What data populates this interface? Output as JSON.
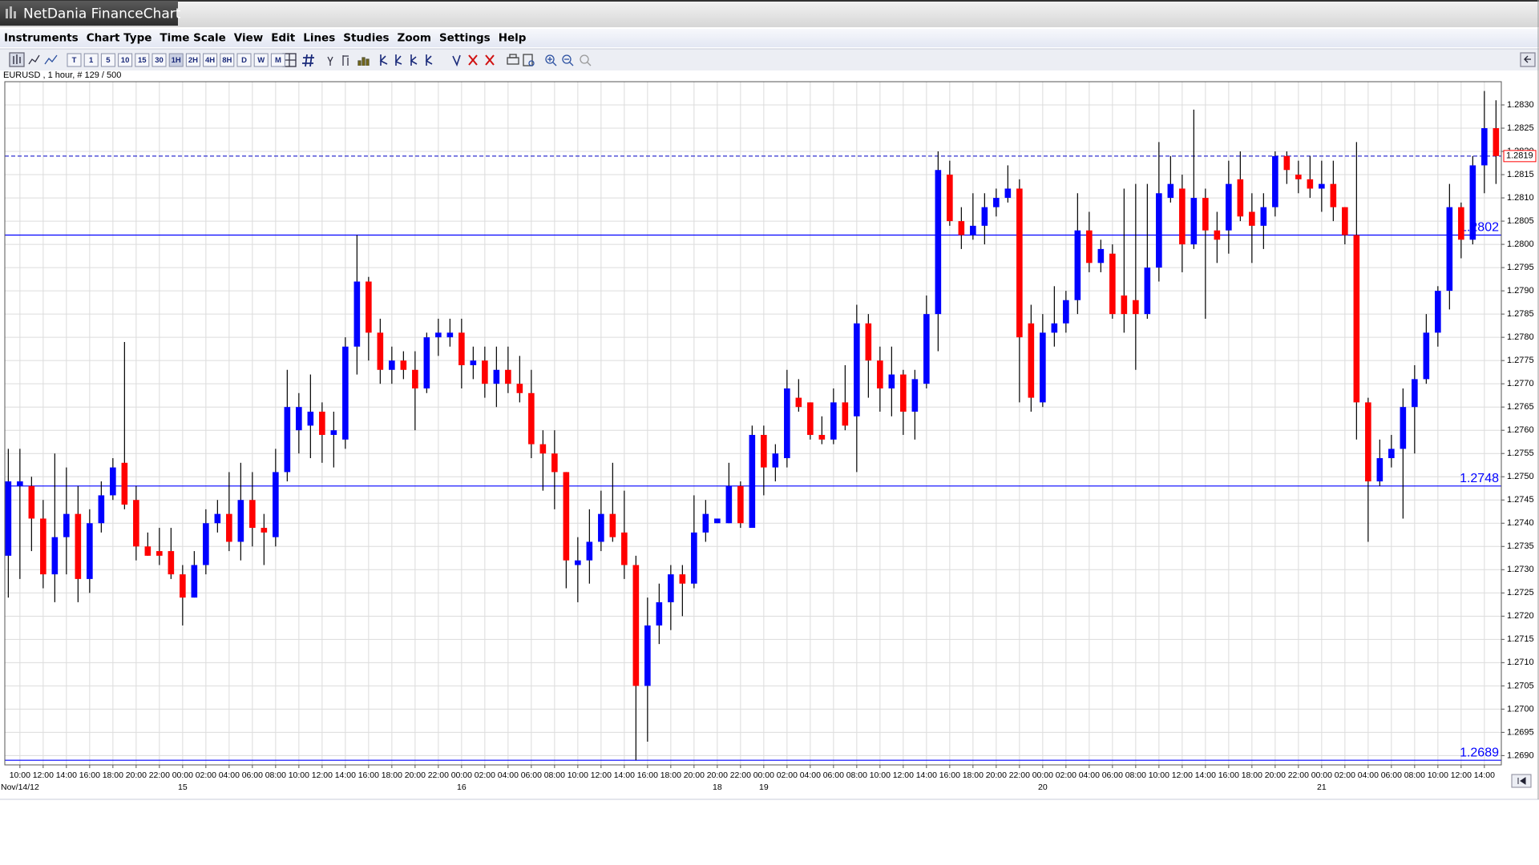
{
  "window": {
    "title": "NetDania FinanceChart"
  },
  "menu": [
    "Instruments",
    "Chart Type",
    "Time Scale",
    "View",
    "Edit",
    "Lines",
    "Studies",
    "Zoom",
    "Settings",
    "Help"
  ],
  "toolbar": {
    "timescale_buttons": [
      "T",
      "1",
      "5",
      "10",
      "15",
      "30",
      "1H",
      "2H",
      "4H",
      "8H",
      "D",
      "W",
      "M"
    ]
  },
  "chart_data": {
    "type": "candlestick",
    "title": "EURUSD , 1 hour, # 129 / 500",
    "up_color": "#0000ff",
    "down_color": "#ff0000",
    "grid": true,
    "ylim": [
      1.2688,
      1.2835
    ],
    "yticks": [
      {
        "value": 1.269,
        "label": "1.2690"
      },
      1.2695,
      {
        "value": 1.27,
        "label": "1.2700"
      },
      1.2705,
      {
        "value": 1.271,
        "label": "1.2710"
      },
      1.2715,
      {
        "value": 1.272,
        "label": "1.2720"
      },
      1.2725,
      {
        "value": 1.273,
        "label": "1.2730"
      },
      1.2735,
      {
        "value": 1.274,
        "label": "1.2740"
      },
      1.2745,
      {
        "value": 1.275,
        "label": "1.2750"
      },
      1.2755,
      {
        "value": 1.276,
        "label": "1.2760"
      },
      1.2765,
      {
        "value": 1.277,
        "label": "1.2770"
      },
      1.2775,
      {
        "value": 1.278,
        "label": "1.2780"
      },
      1.2785,
      {
        "value": 1.279,
        "label": "1.2790"
      },
      1.2795,
      {
        "value": 1.28,
        "label": "1.2800"
      },
      1.2805,
      {
        "value": 1.281,
        "label": "1.2810"
      },
      1.2815,
      {
        "value": 1.282,
        "label": "1.2820"
      },
      1.2825,
      {
        "value": 1.283,
        "label": "1.2830"
      }
    ],
    "categories": [
      null,
      "10:00",
      null,
      "12:00",
      null,
      "14:00",
      null,
      "16:00",
      null,
      "18:00",
      null,
      "20:00",
      null,
      "22:00",
      null,
      "00:00",
      null,
      "02:00",
      null,
      "04:00",
      null,
      "06:00",
      null,
      "08:00",
      null,
      "10:00",
      null,
      "12:00",
      null,
      "14:00",
      null,
      "16:00",
      null,
      "18:00",
      null,
      "20:00",
      null,
      "22:00",
      null,
      "00:00",
      null,
      "02:00",
      null,
      "04:00",
      null,
      "06:00",
      null,
      "08:00",
      null,
      "10:00",
      null,
      "12:00",
      null,
      "14:00",
      null,
      "16:00",
      null,
      "18:00",
      null,
      "20:00",
      null,
      "20:00",
      null,
      "22:00",
      null,
      "00:00",
      null,
      "02:00",
      null,
      "04:00",
      null,
      "06:00",
      null,
      "08:00",
      null,
      "10:00",
      null,
      "12:00",
      null,
      "14:00",
      null,
      "16:00",
      null,
      "18:00",
      null,
      "20:00",
      null,
      "22:00",
      null,
      "00:00",
      null,
      "02:00",
      null,
      "04:00",
      null,
      "06:00",
      null,
      "08:00",
      null,
      "10:00",
      null,
      "12:00",
      null,
      "14:00",
      null,
      "16:00",
      null,
      "18:00",
      null,
      "20:00",
      null,
      "22:00",
      null,
      "00:00",
      null,
      "02:00",
      null,
      "04:00",
      null,
      "06:00",
      null,
      "08:00",
      null,
      "10:00",
      null,
      "12:00",
      null,
      "14:00",
      null
    ],
    "dates": [
      "Nov/14/12",
      null,
      null,
      null,
      null,
      null,
      null,
      null,
      null,
      null,
      null,
      null,
      null,
      null,
      null,
      "15",
      null,
      null,
      null,
      null,
      null,
      null,
      null,
      null,
      null,
      null,
      null,
      null,
      null,
      null,
      null,
      null,
      null,
      null,
      null,
      null,
      null,
      null,
      null,
      "16",
      null,
      null,
      null,
      null,
      null,
      null,
      null,
      null,
      null,
      null,
      null,
      null,
      null,
      null,
      null,
      null,
      null,
      null,
      null,
      null,
      null,
      "18",
      null,
      null,
      null,
      "19",
      null,
      null,
      null,
      null,
      null,
      null,
      null,
      null,
      null,
      null,
      null,
      null,
      null,
      null,
      null,
      null,
      null,
      null,
      null,
      null,
      null,
      null,
      null,
      "20",
      null,
      null,
      null,
      null,
      null,
      null,
      null,
      null,
      null,
      null,
      null,
      null,
      null,
      null,
      null,
      null,
      null,
      null,
      null,
      null,
      null,
      null,
      null,
      "21",
      null,
      null,
      null,
      null,
      null,
      null,
      null,
      null,
      null,
      null,
      null,
      null,
      null,
      null,
      null
    ],
    "ohlc": {
      "open": [
        1.2733,
        1.2748,
        1.2748,
        1.2741,
        1.2729,
        1.2737,
        1.2742,
        1.2728,
        1.274,
        1.2746,
        1.2753,
        1.2745,
        1.2735,
        1.2734,
        1.2734,
        1.2729,
        1.2724,
        1.2731,
        1.274,
        1.2742,
        1.2736,
        1.2745,
        1.2739,
        1.2737,
        1.2751,
        1.276,
        1.2761,
        1.2764,
        1.2759,
        1.2758,
        1.2778,
        1.2792,
        1.2781,
        1.2773,
        1.2775,
        1.2773,
        1.2769,
        1.278,
        1.278,
        1.2781,
        1.2774,
        1.2775,
        1.277,
        1.2773,
        1.277,
        1.2768,
        1.2757,
        1.2755,
        1.2751,
        1.2731,
        1.2732,
        1.2736,
        1.2742,
        1.2738,
        1.2731,
        1.2705,
        1.2718,
        1.2723,
        1.2729,
        1.2727,
        1.2738,
        1.274,
        1.274,
        1.2748,
        1.2739,
        1.2759,
        1.2752,
        1.2754,
        1.2767,
        1.2766,
        1.2759,
        1.2758,
        1.2766,
        1.2763,
        1.2783,
        1.2775,
        1.2769,
        1.2772,
        1.2764,
        1.277,
        1.2785,
        1.2815,
        1.2805,
        1.2802,
        1.2804,
        1.2808,
        1.281,
        1.2812,
        1.2783,
        1.2766,
        1.2781,
        1.2783,
        1.2788,
        1.2803,
        1.2796,
        1.2798,
        1.2789,
        1.2788,
        1.2785,
        1.2795,
        1.281,
        1.2812,
        1.28,
        1.281,
        1.2803,
        1.2803,
        1.2814,
        1.2807,
        1.2804,
        1.2808,
        1.2819,
        1.2815,
        1.2814,
        1.2812,
        1.2813,
        1.2808,
        1.2802,
        1.2766,
        1.2749,
        1.2754,
        1.2756,
        1.2765,
        1.2771,
        1.2781,
        1.279,
        1.2808,
        1.2801,
        1.2817,
        1.2825
      ],
      "high": [
        1.2756,
        1.2756,
        1.275,
        1.2745,
        1.2755,
        1.2752,
        1.2748,
        1.2743,
        1.2749,
        1.2754,
        1.2779,
        1.2748,
        1.2738,
        1.2739,
        1.2739,
        1.2731,
        1.2734,
        1.2743,
        1.2745,
        1.2751,
        1.2753,
        1.2751,
        1.2742,
        1.2756,
        1.2773,
        1.2768,
        1.2772,
        1.2766,
        1.2764,
        1.278,
        1.2802,
        1.2793,
        1.2784,
        1.2778,
        1.2777,
        1.2777,
        1.2781,
        1.2784,
        1.2784,
        1.2784,
        1.2778,
        1.2778,
        1.2778,
        1.2778,
        1.2776,
        1.2773,
        1.276,
        1.276,
        1.2751,
        1.2737,
        1.2743,
        1.2747,
        1.2753,
        1.2747,
        1.2733,
        1.2724,
        1.2727,
        1.2731,
        1.2731,
        1.2746,
        1.2745,
        1.2741,
        1.2753,
        1.2749,
        1.2761,
        1.2761,
        1.2757,
        1.2773,
        1.2771,
        1.2766,
        1.2763,
        1.2769,
        1.2774,
        1.2787,
        1.2785,
        1.2778,
        1.2778,
        1.2773,
        1.2773,
        1.2789,
        1.282,
        1.2818,
        1.2808,
        1.2811,
        1.2811,
        1.2812,
        1.2817,
        1.2814,
        1.2787,
        1.2785,
        1.2791,
        1.279,
        1.2811,
        1.2807,
        1.2801,
        1.28,
        1.2812,
        1.2813,
        1.2813,
        1.2822,
        1.2819,
        1.2815,
        1.2829,
        1.2812,
        1.2807,
        1.2818,
        1.282,
        1.2811,
        1.2811,
        1.282,
        1.282,
        1.2818,
        1.2819,
        1.2818,
        1.2818,
        1.2808,
        1.2822,
        1.2767,
        1.2758,
        1.2759,
        1.2769,
        1.2774,
        1.2785,
        1.2791,
        1.2813,
        1.2809,
        1.2819,
        1.2833,
        1.2831
      ],
      "low": [
        1.2724,
        1.2728,
        1.2734,
        1.2726,
        1.2723,
        1.2729,
        1.2723,
        1.2725,
        1.2738,
        1.2745,
        1.2743,
        1.2732,
        1.2733,
        1.2731,
        1.2728,
        1.2718,
        1.2724,
        1.2729,
        1.2738,
        1.2734,
        1.2732,
        1.2735,
        1.2731,
        1.2735,
        1.2749,
        1.2755,
        1.2754,
        1.2753,
        1.2752,
        1.2756,
        1.2772,
        1.2775,
        1.277,
        1.277,
        1.2771,
        1.276,
        1.2768,
        1.2776,
        1.2778,
        1.2769,
        1.2771,
        1.2767,
        1.2765,
        1.2768,
        1.2766,
        1.2754,
        1.2747,
        1.2743,
        1.2726,
        1.2723,
        1.2727,
        1.2734,
        1.2736,
        1.2728,
        1.2689,
        1.2693,
        1.2714,
        1.2717,
        1.272,
        1.2726,
        1.2736,
        1.274,
        1.274,
        1.2739,
        1.2739,
        1.2746,
        1.2749,
        1.2752,
        1.2764,
        1.2758,
        1.2757,
        1.2757,
        1.276,
        1.2751,
        1.2767,
        1.2764,
        1.2763,
        1.2759,
        1.2758,
        1.2769,
        1.2777,
        1.2804,
        1.2799,
        1.2801,
        1.28,
        1.2806,
        1.2809,
        1.2766,
        1.2764,
        1.2765,
        1.2778,
        1.2781,
        1.2785,
        1.2794,
        1.2794,
        1.2784,
        1.2781,
        1.2773,
        1.2784,
        1.2792,
        1.2809,
        1.2794,
        1.2799,
        1.2784,
        1.2796,
        1.2798,
        1.2805,
        1.2796,
        1.2799,
        1.2806,
        1.2813,
        1.2811,
        1.281,
        1.2807,
        1.2805,
        1.28,
        1.2758,
        1.2736,
        1.2748,
        1.2752,
        1.2741,
        1.2755,
        1.277,
        1.2778,
        1.2786,
        1.2797,
        1.28,
        1.2811,
        1.2813
      ],
      "close": [
        1.2749,
        1.2749,
        1.2741,
        1.2729,
        1.2737,
        1.2742,
        1.2728,
        1.274,
        1.2746,
        1.2752,
        1.2744,
        1.2735,
        1.2733,
        1.2733,
        1.2729,
        1.2724,
        1.2731,
        1.274,
        1.2742,
        1.2736,
        1.2745,
        1.2739,
        1.2738,
        1.2751,
        1.2765,
        1.2765,
        1.2764,
        1.2759,
        1.276,
        1.2778,
        1.2792,
        1.2781,
        1.2773,
        1.2775,
        1.2773,
        1.2769,
        1.278,
        1.2781,
        1.2781,
        1.2774,
        1.2775,
        1.277,
        1.2773,
        1.277,
        1.2768,
        1.2757,
        1.2755,
        1.2751,
        1.2732,
        1.2732,
        1.2736,
        1.2742,
        1.2737,
        1.2731,
        1.2705,
        1.2718,
        1.2723,
        1.2729,
        1.2727,
        1.2738,
        1.2742,
        1.2741,
        1.2748,
        1.274,
        1.2759,
        1.2752,
        1.2755,
        1.2769,
        1.2765,
        1.2759,
        1.2758,
        1.2766,
        1.2761,
        1.2783,
        1.2775,
        1.2769,
        1.2772,
        1.2764,
        1.2771,
        1.2785,
        1.2816,
        1.2805,
        1.2802,
        1.2804,
        1.2808,
        1.281,
        1.2812,
        1.278,
        1.2767,
        1.2781,
        1.2783,
        1.2788,
        1.2803,
        1.2796,
        1.2799,
        1.2785,
        1.2785,
        1.2785,
        1.2795,
        1.2811,
        1.2813,
        1.28,
        1.281,
        1.2803,
        1.2801,
        1.2813,
        1.2806,
        1.2804,
        1.2808,
        1.2819,
        1.2816,
        1.2814,
        1.2812,
        1.2813,
        1.2808,
        1.2802,
        1.2766,
        1.2749,
        1.2754,
        1.2756,
        1.2765,
        1.2771,
        1.2781,
        1.279,
        1.2808,
        1.2801,
        1.2817,
        1.2825,
        1.2819
      ]
    },
    "levels": [
      1.2802,
      1.2748,
      1.2689
    ],
    "level_color": "#0000ff",
    "last_price": 1.2819,
    "last_price_color": "#ff0000"
  }
}
